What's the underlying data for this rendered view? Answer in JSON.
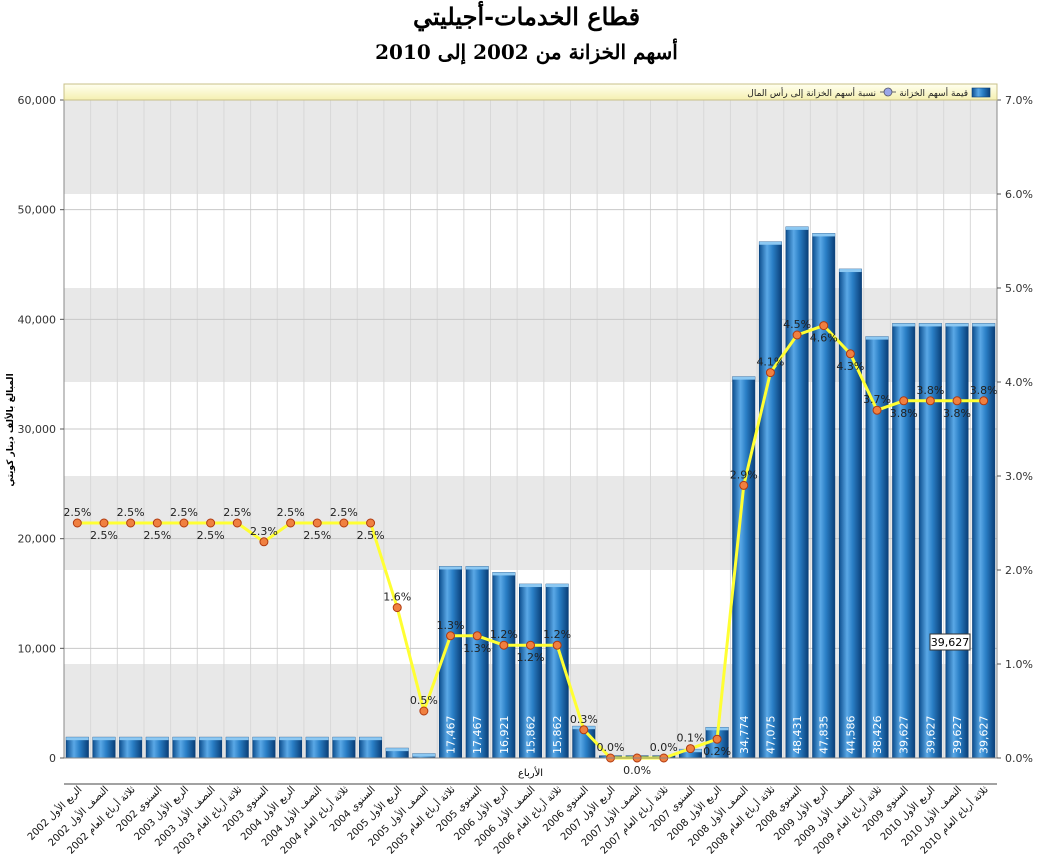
{
  "title": "قطاع الخدمات-أجيليتي",
  "subtitle": "أسهم الخزانة من 2002 إلى 2010",
  "chart_data": {
    "type": "bar",
    "xlabel": "الأرباع",
    "ylabel": "المبالغ بالألف دينار كويتي",
    "ylim": [
      0,
      60000
    ],
    "y2lim": [
      0,
      7
    ],
    "y_ticks": [
      "0",
      "10,000",
      "20,000",
      "30,000",
      "40,000",
      "50,000",
      "60,000"
    ],
    "y2_ticks": [
      "0.0%",
      "1.0%",
      "2.0%",
      "3.0%",
      "4.0%",
      "5.0%",
      "6.0%",
      "7.0%"
    ],
    "grid": true,
    "legend_position": "top",
    "legend": {
      "bar": "قيمة أسهم الخزانة",
      "line": "نسبة أسهم الخزانة إلى رأس المال"
    },
    "tooltip": "39,627",
    "categories": [
      "الربع الأول 2002",
      "النصف الأول 2002",
      "ثلاثة أرباع العام 2002",
      "السنوي 2002",
      "الربع الأول 2003",
      "النصف الأول 2003",
      "ثلاثة أرباع العام 2003",
      "السنوي 2003",
      "الربع الأول 2004",
      "النصف الأول 2004",
      "ثلاثة أرباع العام 2004",
      "السنوي 2004",
      "الربع الأول 2005",
      "النصف الأول 2005",
      "ثلاثة أرباع العام 2005",
      "السنوي 2005",
      "الربع الأول 2006",
      "النصف الأول 2006",
      "ثلاثة أرباع العام 2006",
      "السنوي 2006",
      "الربع الأول 2007",
      "النصف الأول 2007",
      "ثلاثة أرباع العام 2007",
      "السنوي 2007",
      "الربع الأول 2008",
      "النصف الأول 2008",
      "ثلاثة أرباع العام 2008",
      "السنوي 2008",
      "الربع الأول 2009",
      "النصف الأول 2009",
      "ثلاثة أرباع العام 2009",
      "السنوي 2009",
      "الربع الأول 2010",
      "النصف الأول 2010",
      "ثلاثة أرباع العام 2010"
    ],
    "series": [
      {
        "name": "قيمة أسهم الخزانة",
        "kind": "bar",
        "color": "#2a7fc6",
        "values": [
          1900,
          1900,
          1900,
          1900,
          1900,
          1900,
          1900,
          1900,
          1900,
          1900,
          1900,
          1900,
          900,
          400,
          17467,
          17467,
          16921,
          15862,
          15862,
          2900,
          200,
          200,
          200,
          800,
          2800,
          34774,
          47075,
          48431,
          47835,
          44586,
          38426,
          39627,
          39627,
          39627,
          39627
        ],
        "labels": [
          "",
          "",
          "",
          "",
          "",
          "",
          "",
          "",
          "",
          "",
          "",
          "",
          "",
          "",
          "17,467",
          "17,467",
          "16,921",
          "15,862",
          "15,862",
          "",
          "",
          "",
          "",
          "",
          "",
          "34,774",
          "47,075",
          "48,431",
          "47,835",
          "44,586",
          "38,426",
          "39,627",
          "39,627",
          "39,627",
          "39,627"
        ]
      },
      {
        "name": "نسبة أسهم الخزانة إلى رأس المال",
        "kind": "line",
        "axis": "right",
        "color": "#ffff33",
        "marker_color": "#f08040",
        "values": [
          2.5,
          2.5,
          2.5,
          2.5,
          2.5,
          2.5,
          2.5,
          2.3,
          2.5,
          2.5,
          2.5,
          2.5,
          1.6,
          0.5,
          1.3,
          1.3,
          1.2,
          1.2,
          1.2,
          0.3,
          0.0,
          0.0,
          0.0,
          0.1,
          0.2,
          2.9,
          4.1,
          4.5,
          4.6,
          4.3,
          3.7,
          3.8,
          3.8,
          3.8,
          3.8
        ],
        "labels": [
          "2.5%",
          "2.5%",
          "2.5%",
          "2.5%",
          "2.5%",
          "2.5%",
          "2.5%",
          "2.3%",
          "2.5%",
          "2.5%",
          "2.5%",
          "2.5%",
          "1.6%",
          "0.5%",
          "1.3%",
          "1.3%",
          "1.2%",
          "1.2%",
          "1.2%",
          "0.3%",
          "0.0%",
          "0.0%",
          "0.0%",
          "0.1%",
          "0.2%",
          "2.9%",
          "4.1%",
          "4.5%",
          "4.6%",
          "4.3%",
          "3.7%",
          "3.8%",
          "3.8%",
          "3.8%",
          "3.8%"
        ]
      }
    ]
  }
}
